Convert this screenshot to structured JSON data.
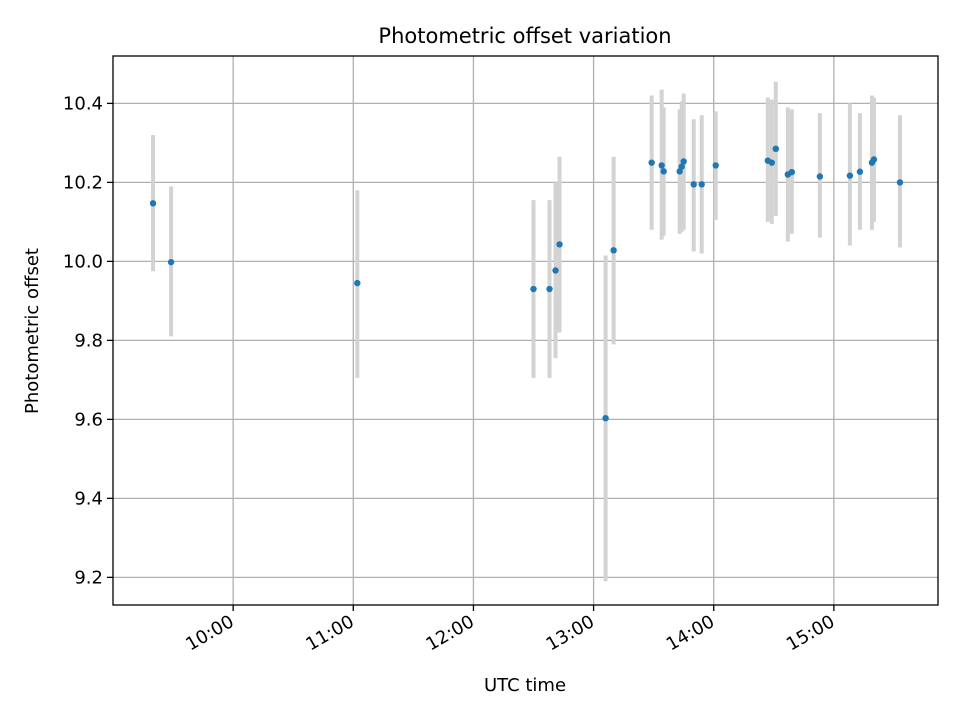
{
  "chart_data": {
    "type": "scatter",
    "title": "Photometric offset variation",
    "xlabel": "UTC time",
    "ylabel": "Photometric offset",
    "x_axis": "time",
    "xlim": [
      "09:00",
      "15:52"
    ],
    "ylim": [
      9.13,
      10.52
    ],
    "grid": true,
    "legend": "none",
    "x_ticks": [
      "10:00",
      "11:00",
      "12:00",
      "13:00",
      "14:00",
      "15:00"
    ],
    "y_ticks": [
      "9.2",
      "9.4",
      "9.6",
      "9.8",
      "10.0",
      "10.2",
      "10.4"
    ],
    "colors": {
      "points": "#1f77b4",
      "error_bars": "#d3d3d3",
      "grid": "#b0b0b0"
    },
    "points": [
      {
        "x": "09:20",
        "y": 10.147,
        "ylo": 9.975,
        "yhi": 10.32
      },
      {
        "x": "09:29",
        "y": 9.998,
        "ylo": 9.81,
        "yhi": 10.19
      },
      {
        "x": "11:02",
        "y": 9.945,
        "ylo": 9.705,
        "yhi": 10.18
      },
      {
        "x": "12:30",
        "y": 9.93,
        "ylo": 9.705,
        "yhi": 10.155
      },
      {
        "x": "12:38",
        "y": 9.93,
        "ylo": 9.705,
        "yhi": 10.155
      },
      {
        "x": "12:41",
        "y": 9.977,
        "ylo": 9.755,
        "yhi": 10.2
      },
      {
        "x": "12:43",
        "y": 10.043,
        "ylo": 9.82,
        "yhi": 10.265
      },
      {
        "x": "13:06",
        "y": 9.603,
        "ylo": 9.19,
        "yhi": 10.015
      },
      {
        "x": "13:10",
        "y": 10.028,
        "ylo": 9.79,
        "yhi": 10.265
      },
      {
        "x": "13:29",
        "y": 10.25,
        "ylo": 10.08,
        "yhi": 10.42
      },
      {
        "x": "13:34",
        "y": 10.243,
        "ylo": 10.055,
        "yhi": 10.435
      },
      {
        "x": "13:35",
        "y": 10.228,
        "ylo": 10.065,
        "yhi": 10.39
      },
      {
        "x": "13:43",
        "y": 10.228,
        "ylo": 10.07,
        "yhi": 10.385
      },
      {
        "x": "13:44",
        "y": 10.24,
        "ylo": 10.075,
        "yhi": 10.405
      },
      {
        "x": "13:45",
        "y": 10.253,
        "ylo": 10.08,
        "yhi": 10.425
      },
      {
        "x": "13:50",
        "y": 10.195,
        "ylo": 10.025,
        "yhi": 10.36
      },
      {
        "x": "13:54",
        "y": 10.195,
        "ylo": 10.02,
        "yhi": 10.37
      },
      {
        "x": "14:01",
        "y": 10.243,
        "ylo": 10.105,
        "yhi": 10.38
      },
      {
        "x": "14:27",
        "y": 10.255,
        "ylo": 10.1,
        "yhi": 10.415
      },
      {
        "x": "14:29",
        "y": 10.25,
        "ylo": 10.095,
        "yhi": 10.41
      },
      {
        "x": "14:31",
        "y": 10.285,
        "ylo": 10.115,
        "yhi": 10.455
      },
      {
        "x": "14:37",
        "y": 10.22,
        "ylo": 10.05,
        "yhi": 10.39
      },
      {
        "x": "14:39",
        "y": 10.226,
        "ylo": 10.07,
        "yhi": 10.385
      },
      {
        "x": "14:53",
        "y": 10.215,
        "ylo": 10.06,
        "yhi": 10.375
      },
      {
        "x": "15:08",
        "y": 10.217,
        "ylo": 10.04,
        "yhi": 10.4
      },
      {
        "x": "15:13",
        "y": 10.227,
        "ylo": 10.08,
        "yhi": 10.375
      },
      {
        "x": "15:19",
        "y": 10.25,
        "ylo": 10.08,
        "yhi": 10.42
      },
      {
        "x": "15:20",
        "y": 10.258,
        "ylo": 10.1,
        "yhi": 10.415
      },
      {
        "x": "15:33",
        "y": 10.2,
        "ylo": 10.035,
        "yhi": 10.37
      }
    ]
  }
}
